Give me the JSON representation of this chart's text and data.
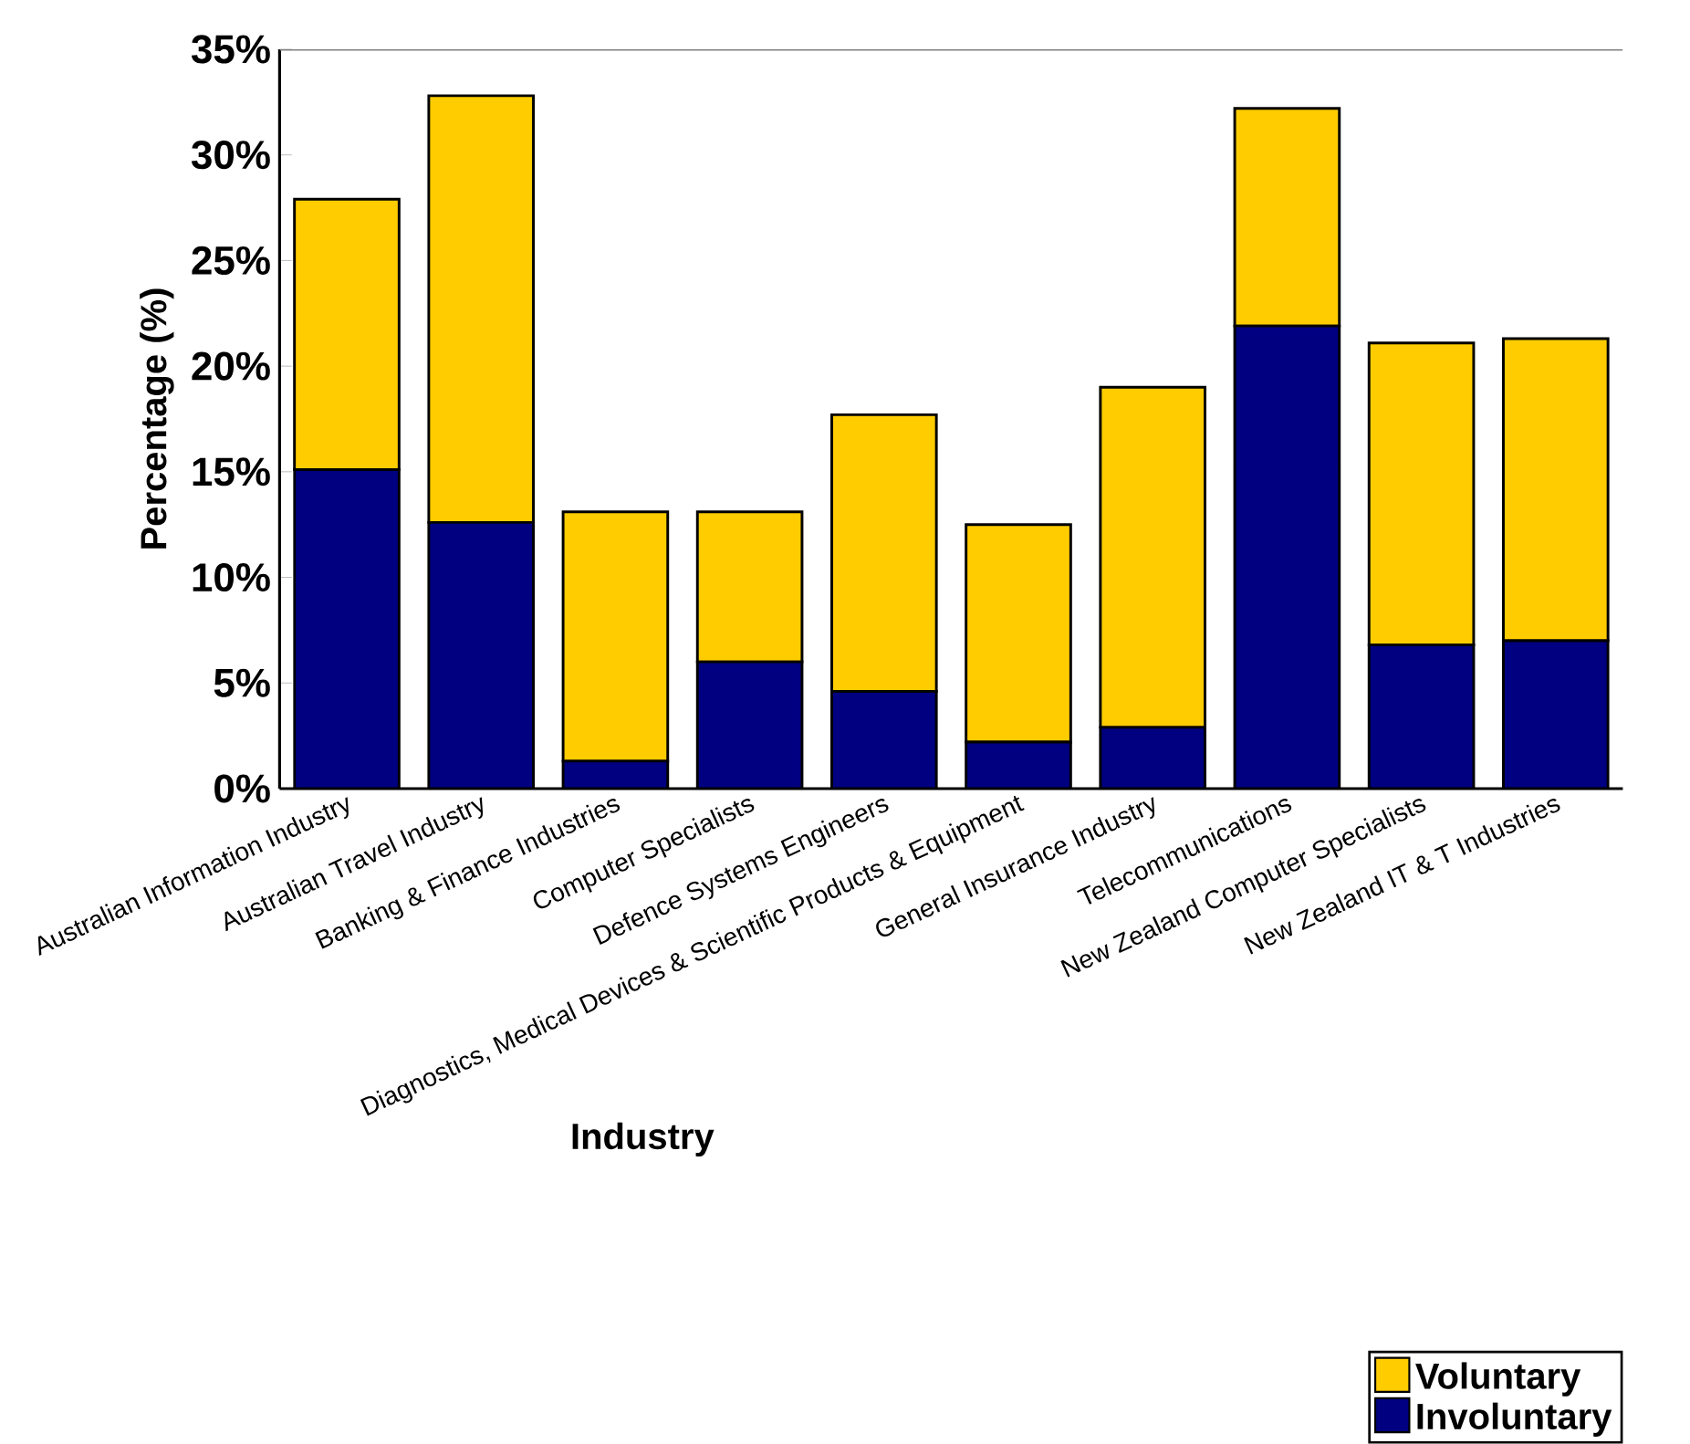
{
  "chart_data": {
    "type": "bar",
    "stacked": true,
    "xlabel": "Industry",
    "ylabel": "Percentage (%)",
    "categories": [
      "Australian Information Industry",
      "Australian Travel Industry",
      "Banking & Finance Industries",
      "Computer Specialists",
      "Defence Systems Engineers",
      "Diagnostics, Medical Devices & Scientific Products & Equipment",
      "General Insurance Industry",
      "Telecommunications",
      "New Zealand Computer Specialists",
      "New Zealand IT & T Industries"
    ],
    "series": [
      {
        "name": "Involuntary",
        "color": "#000080",
        "values": [
          15.1,
          12.6,
          1.3,
          6.0,
          4.6,
          2.2,
          2.9,
          21.9,
          6.8,
          7.0
        ]
      },
      {
        "name": "Voluntary",
        "color": "#ffcc00",
        "values": [
          12.8,
          20.2,
          11.8,
          7.1,
          13.1,
          10.3,
          16.1,
          10.3,
          14.3,
          14.3
        ]
      }
    ],
    "ylim": [
      0,
      35
    ],
    "yticks": [
      {
        "value": 0,
        "label": "0%"
      },
      {
        "value": 5,
        "label": "5%"
      },
      {
        "value": 10,
        "label": "10%"
      },
      {
        "value": 15,
        "label": "15%"
      },
      {
        "value": 20,
        "label": "20%"
      },
      {
        "value": 25,
        "label": "25%"
      },
      {
        "value": 30,
        "label": "30%"
      },
      {
        "value": 35,
        "label": "35%"
      }
    ],
    "grid": false,
    "legend": "bottom right"
  }
}
